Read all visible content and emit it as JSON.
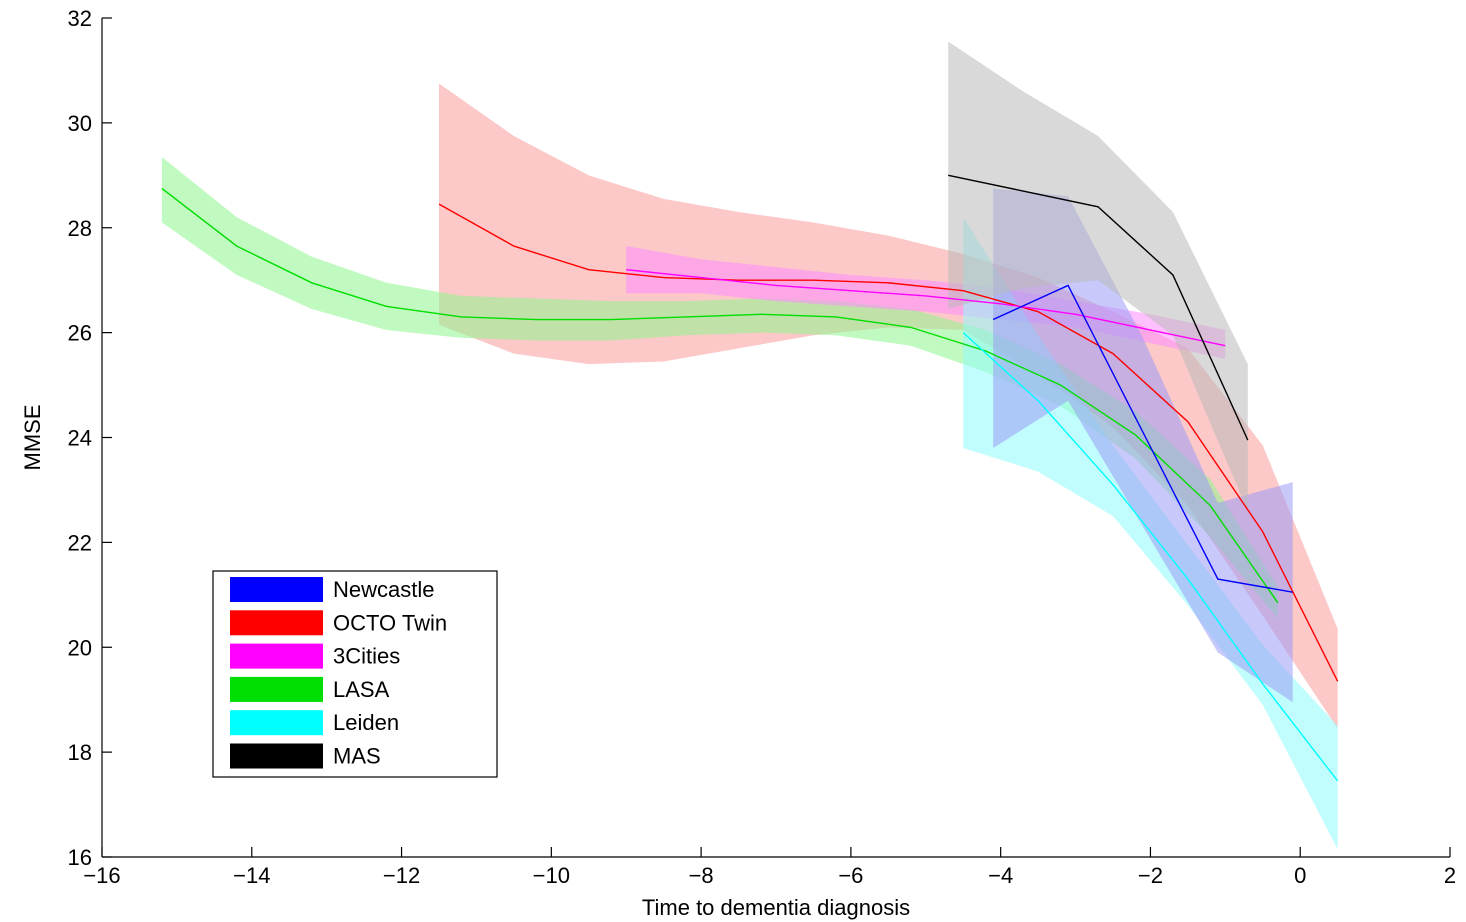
{
  "chart_data": {
    "type": "line",
    "title": "",
    "xlabel": "Time to dementia diagnosis",
    "ylabel": "MMSE",
    "xlim": [
      -16,
      2
    ],
    "ylim": [
      16,
      32
    ],
    "xticks": [
      -16,
      -14,
      -12,
      -10,
      -8,
      -6,
      -4,
      -2,
      0,
      2
    ],
    "yticks": [
      16,
      18,
      20,
      22,
      24,
      26,
      28,
      30,
      32
    ],
    "xtick_labels": [
      "−16",
      "−14",
      "−12",
      "−10",
      "−8",
      "−6",
      "−4",
      "−2",
      "0",
      "2"
    ],
    "ytick_labels": [
      "16",
      "18",
      "20",
      "22",
      "24",
      "26",
      "28",
      "30",
      "32"
    ],
    "grid": false,
    "legend_position": "bottom-left",
    "series": [
      {
        "name": "OCTO Twin",
        "color": "#ff0000",
        "band_color": "#f99a9a",
        "x": [
          -11.5,
          -10.5,
          -9.5,
          -8.5,
          -7.5,
          -6.5,
          -5.5,
          -4.5,
          -3.5,
          -2.5,
          -1.5,
          -0.5,
          0.5
        ],
        "y": [
          28.45,
          27.65,
          27.2,
          27.05,
          27.0,
          27.0,
          26.95,
          26.8,
          26.4,
          25.6,
          24.3,
          22.2,
          19.35
        ],
        "lower": [
          26.15,
          25.6,
          25.4,
          25.45,
          25.7,
          25.95,
          26.1,
          26.05,
          25.2,
          24.2,
          22.7,
          20.6,
          18.45
        ],
        "upper": [
          30.75,
          29.75,
          29.0,
          28.55,
          28.3,
          28.1,
          27.85,
          27.5,
          27.05,
          26.4,
          25.7,
          23.85,
          20.35
        ]
      },
      {
        "name": "LASA",
        "color": "#00dd00",
        "band_color": "#8ef58e",
        "x": [
          -15.2,
          -14.2,
          -13.2,
          -12.2,
          -11.2,
          -10.2,
          -9.2,
          -8.2,
          -7.2,
          -6.2,
          -5.2,
          -4.2,
          -3.2,
          -2.2,
          -1.2,
          -0.3
        ],
        "y": [
          28.75,
          27.65,
          26.95,
          26.5,
          26.3,
          26.25,
          26.25,
          26.3,
          26.35,
          26.3,
          26.1,
          25.65,
          25.0,
          24.05,
          22.7,
          20.85
        ],
        "lower": [
          28.1,
          27.1,
          26.45,
          26.05,
          25.9,
          25.85,
          25.85,
          25.95,
          26.0,
          25.95,
          25.75,
          25.25,
          24.6,
          23.6,
          22.1,
          20.55
        ],
        "upper": [
          29.35,
          28.2,
          27.45,
          26.95,
          26.7,
          26.65,
          26.6,
          26.6,
          26.65,
          26.6,
          26.45,
          26.05,
          25.4,
          24.5,
          23.2,
          21.15
        ]
      },
      {
        "name": "3Cities",
        "color": "#ff00ff",
        "band_color": "#ff8cff",
        "x": [
          -9.0,
          -8.0,
          -7.0,
          -6.0,
          -5.0,
          -4.0,
          -3.0,
          -2.0,
          -1.0
        ],
        "y": [
          27.2,
          27.05,
          26.9,
          26.8,
          26.7,
          26.55,
          26.35,
          26.05,
          25.75
        ],
        "lower": [
          26.75,
          26.75,
          26.6,
          26.5,
          26.4,
          26.25,
          26.1,
          25.8,
          25.5
        ],
        "upper": [
          27.65,
          27.4,
          27.25,
          27.1,
          27.0,
          26.85,
          26.6,
          26.35,
          26.05
        ]
      },
      {
        "name": "Leiden",
        "color": "#00ffff",
        "band_color": "#8ffcfc",
        "x": [
          -4.5,
          -3.5,
          -2.5,
          -1.5,
          -0.5,
          0.5
        ],
        "y": [
          26.0,
          24.7,
          23.1,
          21.3,
          19.3,
          17.45
        ],
        "lower": [
          23.8,
          23.35,
          22.5,
          20.8,
          18.9,
          16.15
        ],
        "upper": [
          28.2,
          25.95,
          23.85,
          21.95,
          20.05,
          18.5
        ]
      },
      {
        "name": "Newcastle",
        "color": "#0000ff",
        "band_color": "#9a9cf5",
        "x": [
          -4.1,
          -3.1,
          -2.1,
          -1.1,
          -0.1
        ],
        "y": [
          26.25,
          26.9,
          24.1,
          21.3,
          21.05
        ],
        "lower": [
          23.8,
          24.7,
          22.3,
          19.9,
          18.95
        ],
        "upper": [
          28.75,
          28.6,
          25.9,
          22.75,
          23.15
        ]
      },
      {
        "name": "MAS",
        "color": "#000000",
        "band_color": "#bababa",
        "x": [
          -4.7,
          -3.7,
          -2.7,
          -1.7,
          -0.7
        ],
        "y": [
          29.0,
          28.7,
          28.4,
          27.1,
          23.95
        ],
        "lower": [
          26.45,
          26.85,
          27.0,
          25.95,
          22.6
        ],
        "upper": [
          31.55,
          30.6,
          29.75,
          28.3,
          25.4
        ]
      }
    ],
    "legend_order": [
      "Newcastle",
      "OCTO Twin",
      "3Cities",
      "LASA",
      "Leiden",
      "MAS"
    ]
  }
}
